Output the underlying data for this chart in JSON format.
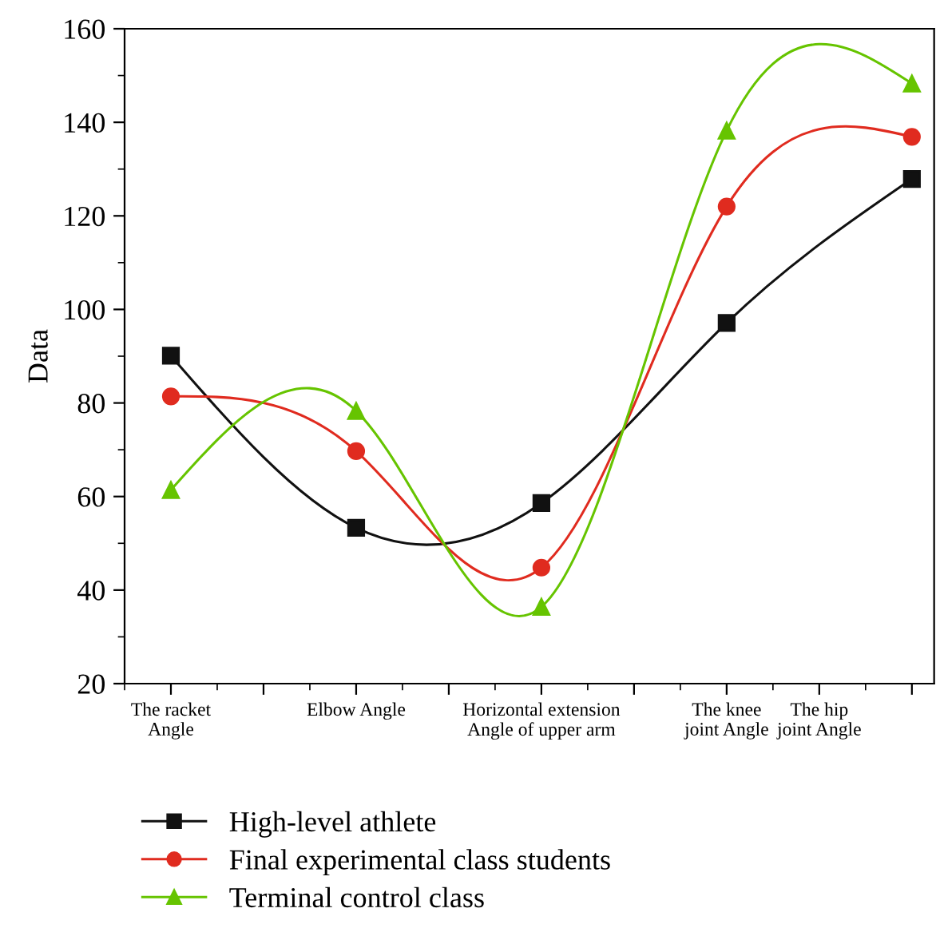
{
  "chart_data": {
    "type": "line",
    "ylabel": "Data",
    "categories": [
      "The racket\nAngle",
      null,
      "Elbow Angle",
      null,
      "Horizontal extension\nAngle of upper arm",
      null,
      "The knee\njoint Angle",
      "The hip\njoint Angle",
      null
    ],
    "ylim": [
      20,
      160
    ],
    "yticks": [
      20,
      40,
      60,
      80,
      100,
      120,
      140,
      160
    ],
    "legend": "bottom",
    "grid": false,
    "series": [
      {
        "name": "High-level athlete",
        "color": "#111111",
        "marker": "square",
        "values": [
          90.1,
          null,
          53.3,
          null,
          58.6,
          null,
          97.1,
          null,
          127.9
        ]
      },
      {
        "name": "Final experimental class students",
        "color": "#e02b1f",
        "marker": "circle",
        "values": [
          81.4,
          null,
          69.7,
          null,
          44.8,
          null,
          122.0,
          null,
          136.9
        ]
      },
      {
        "name": "Terminal control class",
        "color": "#66c400",
        "marker": "triangle",
        "values": [
          61.4,
          null,
          78.3,
          null,
          36.4,
          null,
          138.2,
          null,
          148.3
        ]
      }
    ]
  }
}
